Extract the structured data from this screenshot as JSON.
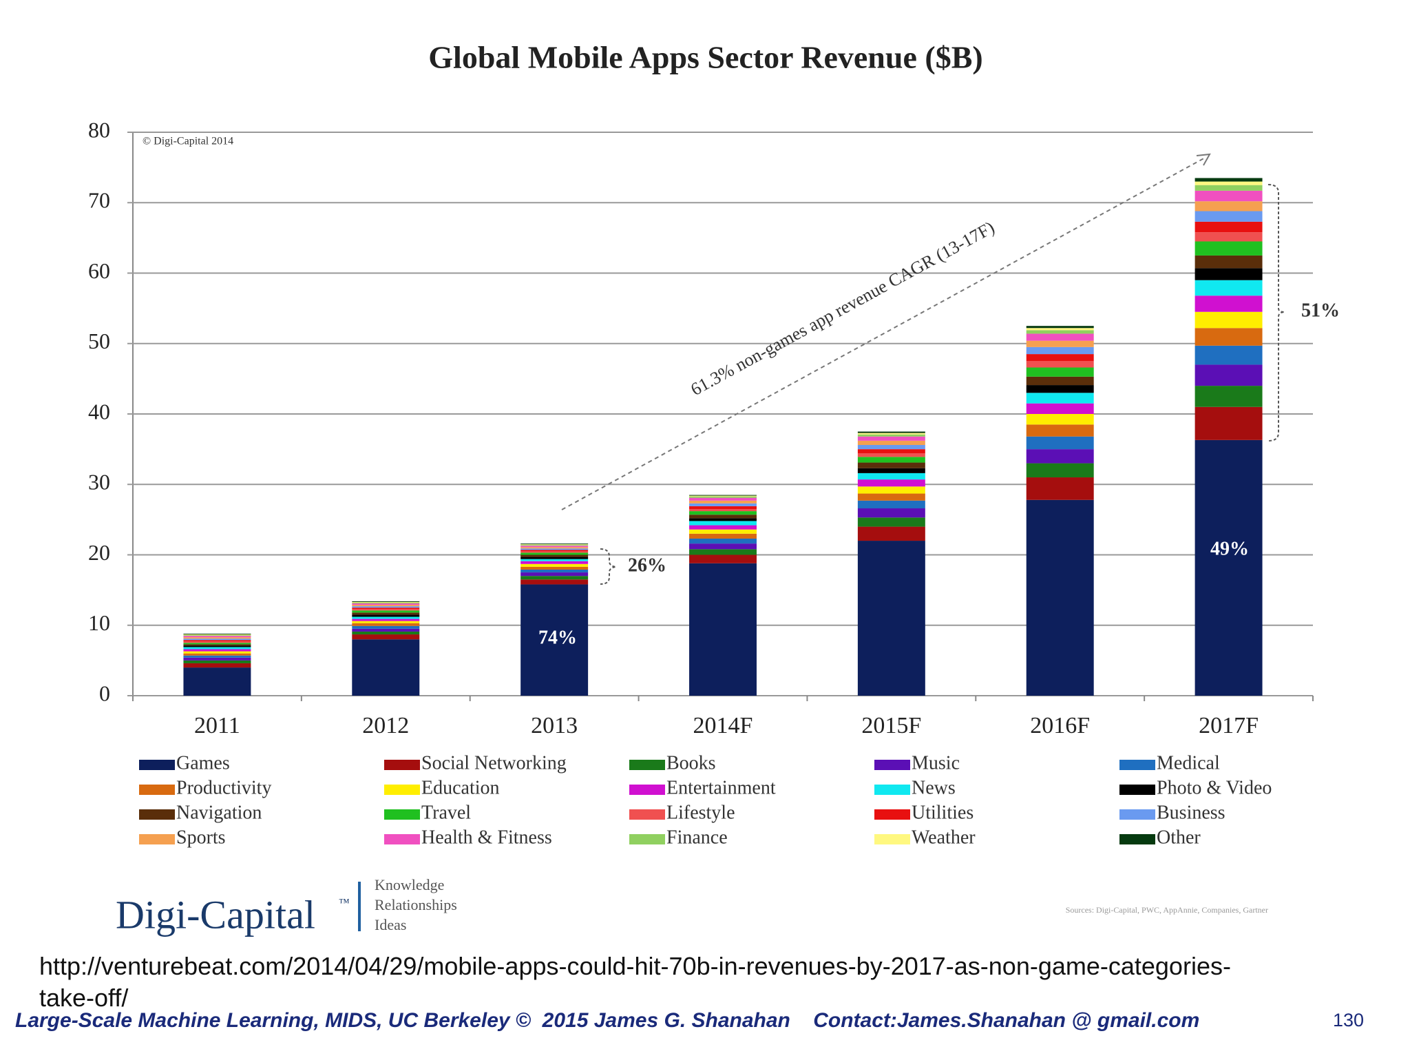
{
  "chart_data": {
    "type": "stacked-bar",
    "title": "Global Mobile Apps Sector Revenue ($B)",
    "categories": [
      "2011",
      "2012",
      "2013",
      "2014F",
      "2015F",
      "2016F",
      "2017F"
    ],
    "ylim": [
      0,
      80
    ],
    "yticks": [
      0,
      10,
      20,
      30,
      40,
      50,
      60,
      70,
      80
    ],
    "grid": true,
    "series": [
      {
        "name": "Games",
        "color": "#0d1f5c",
        "values": [
          4,
          8,
          15.8,
          18.8,
          22,
          27.8,
          36.3
        ]
      },
      {
        "name": "Social Networking",
        "color": "#a50e0e",
        "values": [
          0.6,
          0.7,
          0.7,
          1.2,
          2.0,
          3.2,
          4.7
        ]
      },
      {
        "name": "Books",
        "color": "#1a7a1a",
        "values": [
          0.4,
          0.4,
          0.5,
          0.8,
          1.3,
          2.0,
          3
        ]
      },
      {
        "name": "Music",
        "color": "#5b0fb5",
        "values": [
          0.4,
          0.4,
          0.5,
          0.8,
          1.3,
          2.0,
          3
        ]
      },
      {
        "name": "Medical",
        "color": "#1f6fc0",
        "values": [
          0.3,
          0.4,
          0.4,
          0.7,
          1.1,
          1.8,
          2.7
        ]
      },
      {
        "name": "Productivity",
        "color": "#d86a10",
        "values": [
          0.3,
          0.4,
          0.4,
          0.7,
          1.0,
          1.7,
          2.5
        ]
      },
      {
        "name": "Education",
        "color": "#ffee00",
        "values": [
          0.3,
          0.3,
          0.4,
          0.6,
          1.0,
          1.5,
          2.3
        ]
      },
      {
        "name": "Entertainment",
        "color": "#d010d0",
        "values": [
          0.3,
          0.3,
          0.4,
          0.6,
          1.0,
          1.5,
          2.3
        ]
      },
      {
        "name": "News",
        "color": "#10e8f0",
        "values": [
          0.3,
          0.3,
          0.3,
          0.6,
          0.9,
          1.5,
          2.2
        ]
      },
      {
        "name": "Photo & Video",
        "color": "#000000",
        "values": [
          0.2,
          0.3,
          0.3,
          0.4,
          0.7,
          1.1,
          1.7
        ]
      },
      {
        "name": "Navigation",
        "color": "#5a2e0a",
        "values": [
          0.2,
          0.3,
          0.3,
          0.5,
          0.8,
          1.2,
          1.8
        ]
      },
      {
        "name": "Travel",
        "color": "#20c020",
        "values": [
          0.2,
          0.3,
          0.3,
          0.5,
          0.8,
          1.3,
          2
        ]
      },
      {
        "name": "Lifestyle",
        "color": "#f05050",
        "values": [
          0.2,
          0.2,
          0.2,
          0.3,
          0.5,
          0.9,
          1.3
        ]
      },
      {
        "name": "Utilities",
        "color": "#e81010",
        "values": [
          0.2,
          0.2,
          0.2,
          0.4,
          0.6,
          1.0,
          1.5
        ]
      },
      {
        "name": "Business",
        "color": "#6a9af0",
        "values": [
          0.2,
          0.2,
          0.2,
          0.4,
          0.6,
          1.0,
          1.5
        ]
      },
      {
        "name": "Sports",
        "color": "#f5a050",
        "values": [
          0.2,
          0.2,
          0.2,
          0.4,
          0.6,
          0.9,
          1.4
        ]
      },
      {
        "name": "Health & Fitness",
        "color": "#f050c0",
        "values": [
          0.2,
          0.2,
          0.2,
          0.4,
          0.6,
          1.0,
          1.5
        ]
      },
      {
        "name": "Finance",
        "color": "#90d060",
        "values": [
          0.1,
          0.1,
          0.1,
          0.2,
          0.3,
          0.5,
          0.8
        ]
      },
      {
        "name": "Weather",
        "color": "#fff880",
        "values": [
          0.1,
          0.1,
          0.1,
          0.1,
          0.2,
          0.3,
          0.5
        ]
      },
      {
        "name": "Other",
        "color": "#063a10",
        "values": [
          0.1,
          0.1,
          0.1,
          0.1,
          0.2,
          0.3,
          0.5
        ]
      }
    ],
    "annotations": [
      "© Digi-Capital 2014",
      "74%",
      "26%",
      "49%",
      "51%",
      "61.3% non-games app revenue CAGR (13-17F)"
    ]
  },
  "logo": {
    "name": "Digi-Capital",
    "mark": "™",
    "tagline": [
      "Knowledge",
      "Relationships",
      "Ideas"
    ]
  },
  "sources": "Sources: Digi-Capital, PWC, AppAnnie, Companies, Gartner",
  "url": "http://venturebeat.com/2014/04/29/mobile-apps-could-hit-70b-in-revenues-by-2017-as-non-game-categories-take-off/",
  "footer": "Large-Scale Machine Learning, MIDS, UC Berkeley ©  2015 James G. Shanahan    Contact:James.Shanahan @ gmail.com",
  "page_number": "130"
}
